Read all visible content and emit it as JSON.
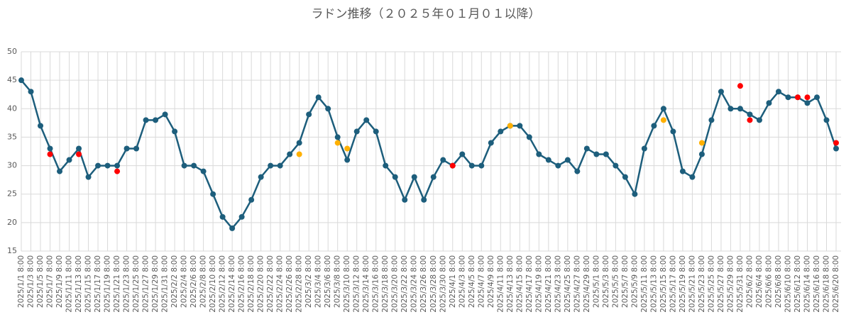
{
  "chart_data": {
    "type": "line",
    "title": "ラドン推移（２０２５年０１月０１以降）",
    "categories": [
      "2025/1/1 8:00",
      "2025/1/3 8:00",
      "2025/1/5 8:00",
      "2025/1/7 8:00",
      "2025/1/9 8:00",
      "2025/1/11 8:00",
      "2025/1/13 8:00",
      "2025/1/15 8:00",
      "2025/1/17 8:00",
      "2025/1/19 8:00",
      "2025/1/21 8:00",
      "2025/1/23 8:00",
      "2025/1/25 8:00",
      "2025/1/27 8:00",
      "2025/1/29 8:00",
      "2025/1/31 8:00",
      "2025/2/2 8:00",
      "2025/2/4 8:00",
      "2025/2/6 8:00",
      "2025/2/8 8:00",
      "2025/2/10 8:00",
      "2025/2/12 8:00",
      "2025/2/14 8:00",
      "2025/2/16 8:00",
      "2025/2/18 8:00",
      "2025/2/20 8:00",
      "2025/2/22 8:00",
      "2025/2/24 8:00",
      "2025/2/26 8:00",
      "2025/2/28 8:00",
      "2025/3/2 8:00",
      "2025/3/4 8:00",
      "2025/3/6 8:00",
      "2025/3/8 8:00",
      "2025/3/10 8:00",
      "2025/3/12 8:00",
      "2025/3/14 8:00",
      "2025/3/16 8:00",
      "2025/3/18 8:00",
      "2025/3/20 8:00",
      "2025/3/22 8:00",
      "2025/3/24 8:00",
      "2025/3/26 8:00",
      "2025/3/28 8:00",
      "2025/3/30 8:00",
      "2025/4/1 8:00",
      "2025/4/3 8:00",
      "2025/4/5 8:00",
      "2025/4/7 8:00",
      "2025/4/9 8:00",
      "2025/4/11 8:00",
      "2025/4/13 8:00",
      "2025/4/15 8:00",
      "2025/4/17 8:00",
      "2025/4/19 8:00",
      "2025/4/21 8:00",
      "2025/4/23 8:00",
      "2025/4/25 8:00",
      "2025/4/27 8:00",
      "2025/4/29 8:00",
      "2025/5/1 8:00",
      "2025/5/3 8:00",
      "2025/5/5 8:00",
      "2025/5/7 8:00",
      "2025/5/9 8:00",
      "2025/5/11 8:00",
      "2025/5/13 8:00",
      "2025/5/15 8:00",
      "2025/5/17 8:00",
      "2025/5/19 8:00",
      "2025/5/21 8:00",
      "2025/5/23 8:00",
      "2025/5/25 8:00",
      "2025/5/27 8:00",
      "2025/5/29 8:00",
      "2025/5/31 8:00",
      "2025/6/2 8:00",
      "2025/6/4 8:00",
      "2025/6/6 8:00",
      "2025/6/8 8:00",
      "2025/6/10 8:00",
      "2025/6/12 8:00",
      "2025/6/14 8:00",
      "2025/6/16 8:00",
      "2025/6/18 8:00",
      "2025/6/20 8:00"
    ],
    "series": [
      {
        "color": "#1d5e7c",
        "style": "line",
        "values": [
          45,
          43,
          37,
          33,
          29,
          31,
          33,
          28,
          30,
          30,
          30,
          33,
          33,
          38,
          38,
          39,
          36,
          30,
          30,
          29,
          25,
          21,
          19,
          21,
          24,
          28,
          30,
          30,
          32,
          34,
          39,
          42,
          40,
          35,
          31,
          36,
          38,
          36,
          30,
          28,
          24,
          28,
          24,
          28,
          31,
          30,
          32,
          30,
          30,
          34,
          36,
          37,
          37,
          35,
          32,
          31,
          30,
          31,
          29,
          33,
          32,
          32,
          30,
          28,
          25,
          33,
          37,
          40,
          36,
          29,
          28,
          32,
          38,
          43,
          40,
          40,
          39,
          38,
          41,
          43,
          42,
          42,
          41,
          42,
          38,
          33
        ]
      },
      {
        "color": "#ff0000",
        "style": "markers",
        "values": [
          null,
          null,
          null,
          32,
          null,
          null,
          32,
          null,
          null,
          null,
          29,
          null,
          null,
          null,
          null,
          null,
          null,
          null,
          null,
          null,
          null,
          null,
          null,
          null,
          null,
          null,
          null,
          null,
          null,
          null,
          null,
          null,
          null,
          null,
          null,
          null,
          null,
          null,
          null,
          null,
          null,
          null,
          null,
          null,
          null,
          30,
          null,
          null,
          null,
          null,
          null,
          null,
          null,
          null,
          null,
          null,
          null,
          null,
          null,
          null,
          null,
          null,
          null,
          null,
          null,
          null,
          null,
          null,
          null,
          null,
          null,
          null,
          null,
          null,
          null,
          44,
          38,
          null,
          null,
          null,
          null,
          42,
          42,
          null,
          null,
          34
        ]
      },
      {
        "color": "#ffb000",
        "style": "markers",
        "values": [
          null,
          null,
          null,
          null,
          null,
          null,
          null,
          null,
          null,
          null,
          null,
          null,
          null,
          null,
          null,
          null,
          null,
          null,
          null,
          null,
          null,
          null,
          null,
          null,
          null,
          null,
          null,
          null,
          null,
          32,
          null,
          null,
          null,
          34,
          33,
          null,
          null,
          null,
          null,
          null,
          null,
          null,
          null,
          null,
          null,
          null,
          null,
          null,
          null,
          null,
          null,
          37,
          null,
          null,
          null,
          null,
          null,
          null,
          null,
          null,
          null,
          null,
          null,
          null,
          null,
          null,
          null,
          38,
          null,
          null,
          null,
          34,
          null,
          null,
          null,
          null,
          null,
          null,
          null,
          null,
          null,
          null,
          null,
          null,
          null,
          null
        ]
      }
    ],
    "ylim": [
      15,
      50
    ],
    "yticks": [
      15,
      20,
      25,
      30,
      35,
      40,
      45,
      50
    ],
    "grid": true
  }
}
